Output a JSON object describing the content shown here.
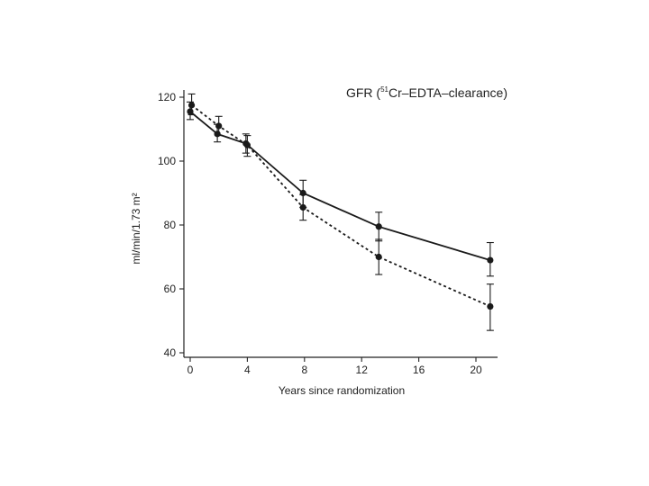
{
  "chart_data": {
    "type": "line",
    "title_parts": {
      "prefix": "GFR (",
      "superscript": "51",
      "suffix": "Cr–EDTA–clearance)"
    },
    "xlabel": "Years since randomization",
    "ylabel": "ml/min/1.73 m²",
    "xlim": [
      0,
      21
    ],
    "ylim": [
      40,
      120
    ],
    "x_ticks": [
      0,
      4,
      8,
      12,
      16,
      20
    ],
    "y_ticks": [
      40,
      60,
      80,
      100,
      120
    ],
    "grid": false,
    "color": "#1a1a1a",
    "series": [
      {
        "name": "solid",
        "style": "solid",
        "x": [
          0,
          1.9,
          3.9,
          7.9,
          13.2,
          21
        ],
        "values": [
          115.5,
          108.5,
          105.5,
          90,
          79.5,
          69
        ],
        "err_low": [
          113,
          106,
          102.5,
          85.5,
          75,
          64
        ],
        "err_high": [
          118.5,
          111.5,
          108.5,
          94,
          84,
          74.5
        ]
      },
      {
        "name": "dashed",
        "style": "dashed",
        "x": [
          0.1,
          2,
          4,
          7.9,
          13.2,
          21
        ],
        "values": [
          117.5,
          111,
          105,
          85.5,
          70,
          54.5
        ],
        "err_low": [
          114.5,
          108,
          101.5,
          81.5,
          64.5,
          47
        ],
        "err_high": [
          121,
          114,
          108,
          89.5,
          75.5,
          61.5
        ]
      }
    ]
  }
}
